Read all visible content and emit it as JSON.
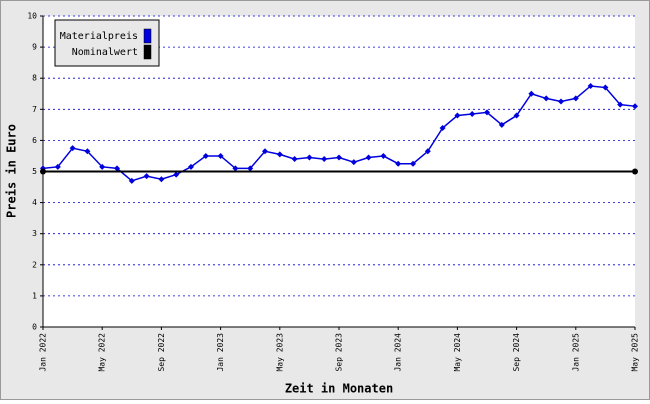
{
  "chart_data": {
    "type": "line",
    "x_label": "Zeit in Monaten",
    "y_label": "Preis in Euro",
    "categories": [
      "Jan 2022",
      null,
      null,
      null,
      "May 2022",
      null,
      null,
      null,
      "Sep 2022",
      null,
      null,
      null,
      "Jan 2023",
      null,
      null,
      null,
      "May 2023",
      null,
      null,
      null,
      "Sep 2023",
      null,
      null,
      null,
      "Jan 2024",
      null,
      null,
      null,
      "May 2024",
      null,
      null,
      null,
      "Sep 2024",
      null,
      null,
      null,
      "Jan 2025",
      null,
      null,
      null,
      "May 2025"
    ],
    "series": [
      {
        "name": "Materialpreis",
        "color": "#0000dd",
        "values": [
          5.1,
          5.15,
          5.75,
          5.65,
          5.15,
          5.1,
          4.7,
          4.85,
          4.75,
          4.9,
          5.15,
          5.5,
          5.5,
          5.1,
          5.1,
          5.65,
          5.55,
          5.4,
          5.45,
          5.4,
          5.45,
          5.3,
          5.45,
          5.5,
          5.25,
          5.25,
          5.65,
          6.4,
          6.8,
          6.85,
          6.9,
          6.5,
          6.8,
          7.5,
          7.35,
          7.25,
          7.35,
          7.75,
          7.7,
          7.15,
          7.1
        ]
      },
      {
        "name": "Nominalwert",
        "color": "#000000",
        "values": [
          5,
          5,
          5,
          5,
          5,
          5,
          5,
          5,
          5,
          5,
          5,
          5,
          5,
          5,
          5,
          5,
          5,
          5,
          5,
          5,
          5,
          5,
          5,
          5,
          5,
          5,
          5,
          5,
          5,
          5,
          5,
          5,
          5,
          5,
          5,
          5,
          5,
          5,
          5,
          5,
          5
        ]
      }
    ],
    "ylim": [
      0,
      10
    ],
    "yticks": [
      0,
      1,
      2,
      3,
      4,
      5,
      6,
      7,
      8,
      9,
      10
    ],
    "grid": true,
    "legend": "top-left"
  }
}
